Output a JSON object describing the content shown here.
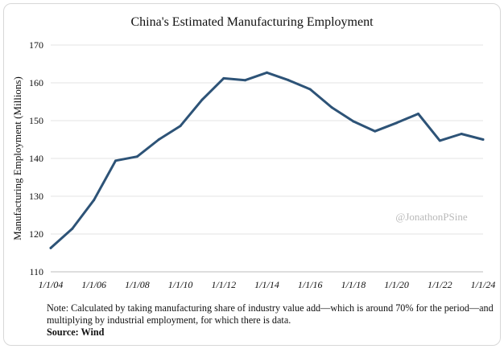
{
  "chart_data": {
    "type": "line",
    "title": "China's Estimated Manufacturing Employment",
    "ylabel": "Manufacturing Employment (Millions)",
    "xlabel": "",
    "ylim": [
      110,
      170
    ],
    "yticks": [
      110,
      120,
      130,
      140,
      150,
      160,
      170
    ],
    "grid": true,
    "xtick_labels": [
      "1/1/04",
      "1/1/06",
      "1/1/08",
      "1/1/10",
      "1/1/12",
      "1/1/14",
      "1/1/16",
      "1/1/18",
      "1/1/20",
      "1/1/22",
      "1/1/24"
    ],
    "x": [
      2004,
      2005,
      2006,
      2007,
      2008,
      2009,
      2010,
      2011,
      2012,
      2013,
      2014,
      2015,
      2016,
      2017,
      2018,
      2019,
      2020,
      2021,
      2022,
      2023,
      2024
    ],
    "series": [
      {
        "name": "Manufacturing Employment",
        "color": "#2d5377",
        "values": [
          116.3,
          121.4,
          129.0,
          139.4,
          140.5,
          145.0,
          148.6,
          155.5,
          161.2,
          160.7,
          162.7,
          160.7,
          158.3,
          153.5,
          149.8,
          147.2,
          149.4,
          151.8,
          144.7,
          146.5,
          145.0
        ]
      }
    ],
    "watermark": "@JonathonPSine"
  },
  "note": {
    "text": "Note: Calculated by taking manufacturing share of industry value add—which is around 70% for the period—and multiplying by industrial employment, for which there is data.",
    "source": "Source: Wind"
  }
}
